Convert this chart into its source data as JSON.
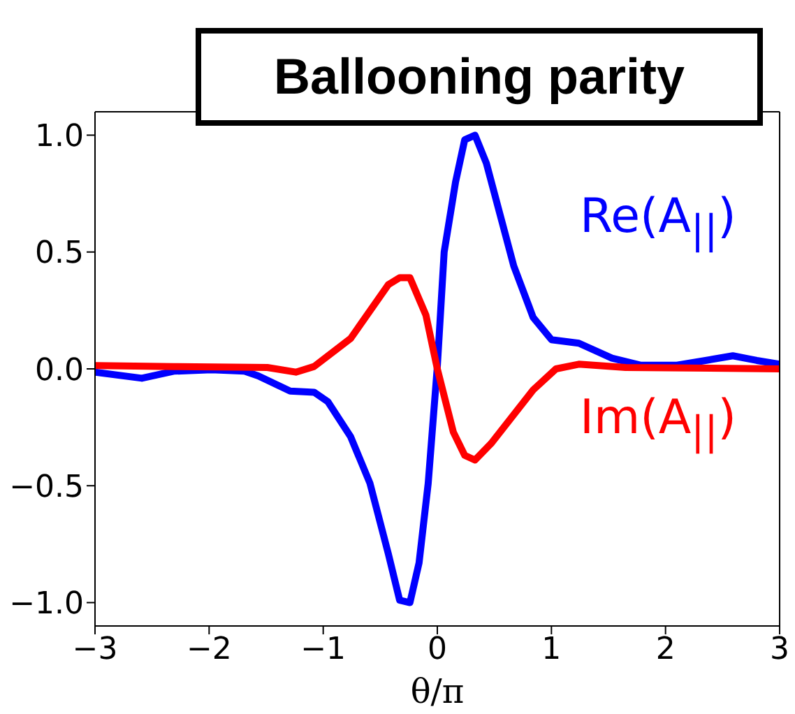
{
  "chart_data": {
    "type": "line",
    "title": "Ballooning parity",
    "xlabel": "θ/π",
    "xlim": [
      -3,
      3
    ],
    "ylim": [
      -1.1,
      1.1
    ],
    "xticks": [
      {
        "value": -3,
        "label": "−3"
      },
      {
        "value": -2,
        "label": "−2"
      },
      {
        "value": -1,
        "label": "−1"
      },
      0,
      1,
      2,
      3
    ],
    "yticks": [
      {
        "value": -1,
        "label": "−1.0"
      },
      {
        "value": -0.5,
        "label": "−0.5"
      },
      {
        "value": 0,
        "label": "0.0"
      },
      {
        "value": 0.5,
        "label": "0.5"
      },
      {
        "value": 1,
        "label": "1.0"
      }
    ],
    "marker": "none",
    "line_style": "solid",
    "series": [
      {
        "name": "Re(A$_{||}$)",
        "color": "#0000ff",
        "x": [
          -3,
          -2.59,
          -2.31,
          -1.98,
          -1.69,
          -1.57,
          -1.29,
          -1.08,
          -0.96,
          -0.76,
          -0.59,
          -0.43,
          -0.33,
          -0.24,
          -0.16,
          -0.08,
          0,
          0.06,
          0.16,
          0.24,
          0.33,
          0.43,
          0.55,
          0.67,
          0.84,
          1,
          1.24,
          1.53,
          1.78,
          2.1,
          2.35,
          2.59,
          2.8,
          3
        ],
        "values": [
          -0.014,
          -0.04,
          -0.01,
          -0.004,
          -0.01,
          -0.03,
          -0.095,
          -0.1,
          -0.14,
          -0.29,
          -0.49,
          -0.79,
          -0.99,
          -1,
          -0.83,
          -0.49,
          0.01,
          0.5,
          0.8,
          0.98,
          1,
          0.88,
          0.66,
          0.44,
          0.22,
          0.125,
          0.11,
          0.046,
          0.016,
          0.016,
          0.036,
          0.056,
          0.036,
          0.02
        ]
      },
      {
        "name": "Im(A$_{||}$)",
        "color": "#ff0000",
        "x": [
          -3,
          -2.31,
          -1.49,
          -1.24,
          -1.08,
          -0.76,
          -0.43,
          -0.33,
          -0.24,
          -0.1,
          0,
          0.14,
          0.24,
          0.33,
          0.47,
          0.84,
          1.04,
          1.24,
          1.65,
          3
        ],
        "values": [
          0.014,
          0.01,
          0.006,
          -0.014,
          0.01,
          0.13,
          0.36,
          0.39,
          0.39,
          0.23,
          0,
          -0.27,
          -0.37,
          -0.39,
          -0.32,
          -0.09,
          0,
          0.02,
          0.006,
          0
        ]
      }
    ]
  }
}
